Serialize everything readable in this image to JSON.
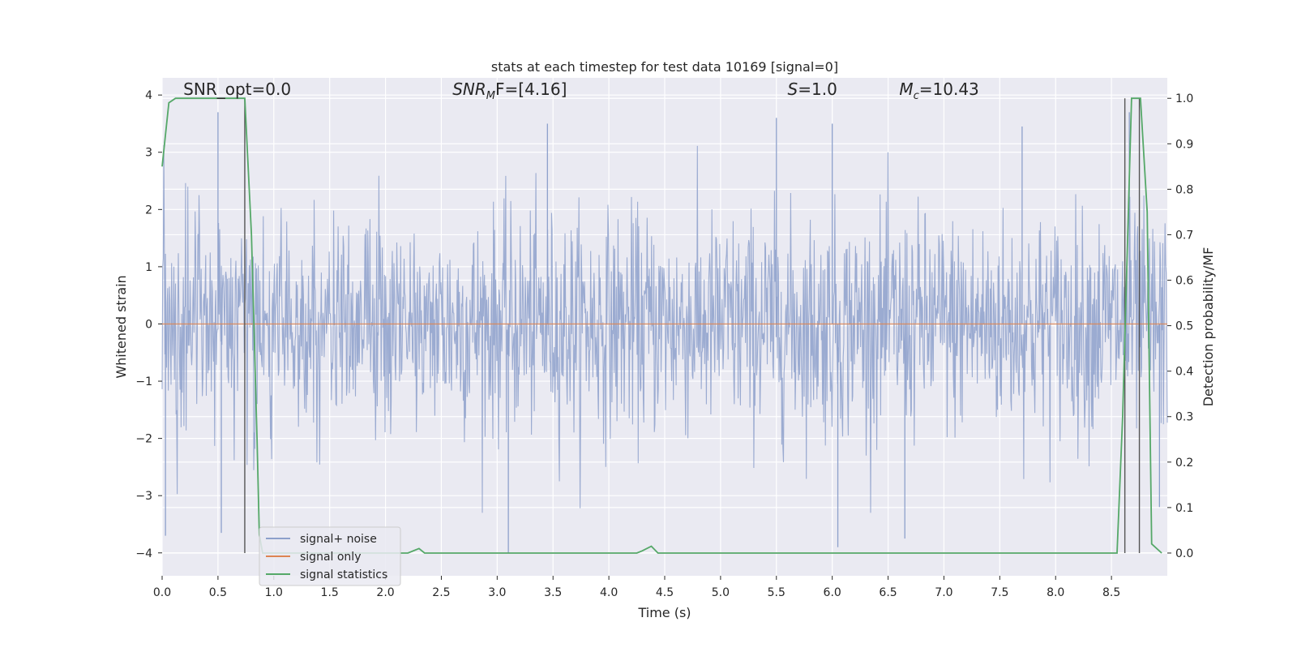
{
  "chart_data": {
    "type": "line",
    "title": "stats at each timestep for test data 10169 [signal=0]",
    "xlabel": "Time (s)",
    "ylabel": "Whitened strain",
    "y2label": "Detection probability/MF",
    "xlim": [
      0.0,
      9.0
    ],
    "ylim": [
      -4.4,
      4.3
    ],
    "y2lim": [
      -0.05,
      1.045
    ],
    "x_ticks": [
      0.0,
      0.5,
      1.0,
      1.5,
      2.0,
      2.5,
      3.0,
      3.5,
      4.0,
      4.5,
      5.0,
      5.5,
      6.0,
      6.5,
      7.0,
      7.5,
      8.0,
      8.5
    ],
    "x_tick_labels": [
      "0.0",
      "0.5",
      "1.0",
      "1.5",
      "2.0",
      "2.5",
      "3.0",
      "3.5",
      "4.0",
      "4.5",
      "5.0",
      "5.5",
      "6.0",
      "6.5",
      "7.0",
      "7.5",
      "8.0",
      "8.5"
    ],
    "y_ticks": [
      -4,
      -3,
      -2,
      -1,
      0,
      1,
      2,
      3,
      4
    ],
    "y_tick_labels": [
      "−4",
      "−3",
      "−2",
      "−1",
      "0",
      "1",
      "2",
      "3",
      "4"
    ],
    "y2_ticks": [
      0.0,
      0.1,
      0.2,
      0.3,
      0.4,
      0.5,
      0.6,
      0.7,
      0.8,
      0.9,
      1.0
    ],
    "y2_tick_labels": [
      "0.0",
      "0.1",
      "0.2",
      "0.3",
      "0.4",
      "0.5",
      "0.6",
      "0.7",
      "0.8",
      "0.9",
      "1.0"
    ],
    "grid": true,
    "annotations": [
      {
        "text": "SNR_opt=0.0",
        "x": 0.19,
        "y": 4.1
      },
      {
        "text": "SNR",
        "sub": "M",
        "tail": "F=[4.16]",
        "italic": true,
        "x": 2.6,
        "y": 4.1
      },
      {
        "text": "S",
        "tail": "=1.0",
        "italic": true,
        "x": 5.6,
        "y": 4.1
      },
      {
        "text": "M",
        "sub": "c",
        "tail": "=10.43",
        "italic": true,
        "x": 6.6,
        "y": 4.1
      }
    ],
    "vlines": [
      {
        "x": 0.74,
        "y2_min": 0.0,
        "y2_max": 1.0
      },
      {
        "x": 8.62,
        "y2_min": 0.0,
        "y2_max": 1.0
      },
      {
        "x": 8.75,
        "y2_min": 0.0,
        "y2_max": 1.0
      }
    ],
    "legend": {
      "placement": "lower-left",
      "entries": [
        {
          "label": "signal+ noise",
          "color": "#8da0cb"
        },
        {
          "label": "signal only",
          "color": "#dd8452"
        },
        {
          "label": "signal statistics",
          "color": "#55a868"
        }
      ]
    },
    "series": [
      {
        "name": "signal+ noise",
        "axis": "left",
        "color": "#8da0cb",
        "kind": "dense-noise",
        "x_range": [
          0.0,
          9.0
        ],
        "samples": 1800,
        "typical_envelope": [
          -1.6,
          1.5
        ],
        "peaks": [
          {
            "x": 0.03,
            "y": -3.7
          },
          {
            "x": 0.5,
            "y": 3.7
          },
          {
            "x": 0.53,
            "y": -3.65
          },
          {
            "x": 3.1,
            "y": -4.0
          },
          {
            "x": 3.45,
            "y": 3.5
          },
          {
            "x": 5.5,
            "y": 3.6
          },
          {
            "x": 6.0,
            "y": 3.5
          },
          {
            "x": 6.05,
            "y": -3.9
          },
          {
            "x": 6.65,
            "y": -3.75
          },
          {
            "x": 7.7,
            "y": 3.45
          },
          {
            "x": 8.66,
            "y": 3.7
          },
          {
            "x": 8.93,
            "y": -3.2
          }
        ]
      },
      {
        "name": "signal only",
        "axis": "left",
        "color": "#dd8452",
        "x": [
          0.0,
          9.0
        ],
        "y": [
          0.0,
          0.0
        ]
      },
      {
        "name": "signal statistics",
        "axis": "right",
        "color": "#55a868",
        "x": [
          0.0,
          0.06,
          0.12,
          0.74,
          0.8,
          0.85,
          0.87,
          0.9,
          2.2,
          2.3,
          2.35,
          4.25,
          4.3,
          4.38,
          4.44,
          8.55,
          8.6,
          8.68,
          8.76,
          8.82,
          8.86,
          8.95
        ],
        "y": [
          0.85,
          0.99,
          1.0,
          1.0,
          0.7,
          0.25,
          0.04,
          0.0,
          0.0,
          0.01,
          0.0,
          0.0,
          0.005,
          0.015,
          0.0,
          0.0,
          0.3,
          1.0,
          1.0,
          0.75,
          0.02,
          0.0
        ]
      }
    ]
  }
}
